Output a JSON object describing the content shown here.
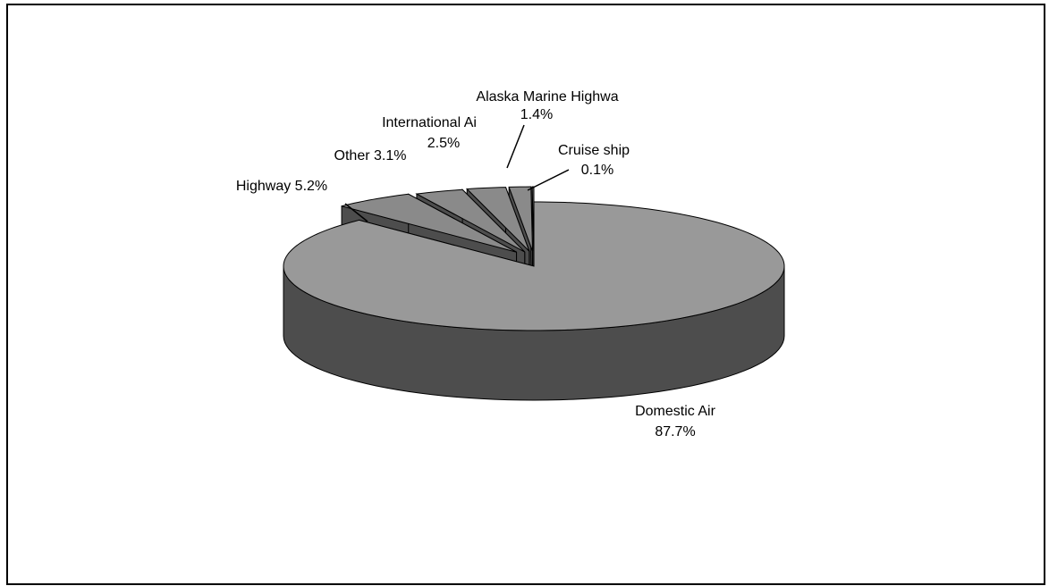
{
  "chart_data": {
    "type": "pie3d",
    "categories": [
      "Domestic Air",
      "Highway",
      "Other",
      "International Ai",
      "Alaska Marine Highwa",
      "Cruise ship"
    ],
    "values": [
      87.7,
      5.2,
      3.1,
      2.5,
      1.4,
      0.1
    ],
    "value_labels": [
      "87.7%",
      "5.2%",
      "3.1%",
      "2.5%",
      "1.4%",
      "0.1%"
    ],
    "colors": [
      "#999999",
      "#8a8a8a",
      "#8a8a8a",
      "#8a8a8a",
      "#8a8a8a",
      "#8a8a8a"
    ],
    "side_color": "#4d4d4d"
  }
}
